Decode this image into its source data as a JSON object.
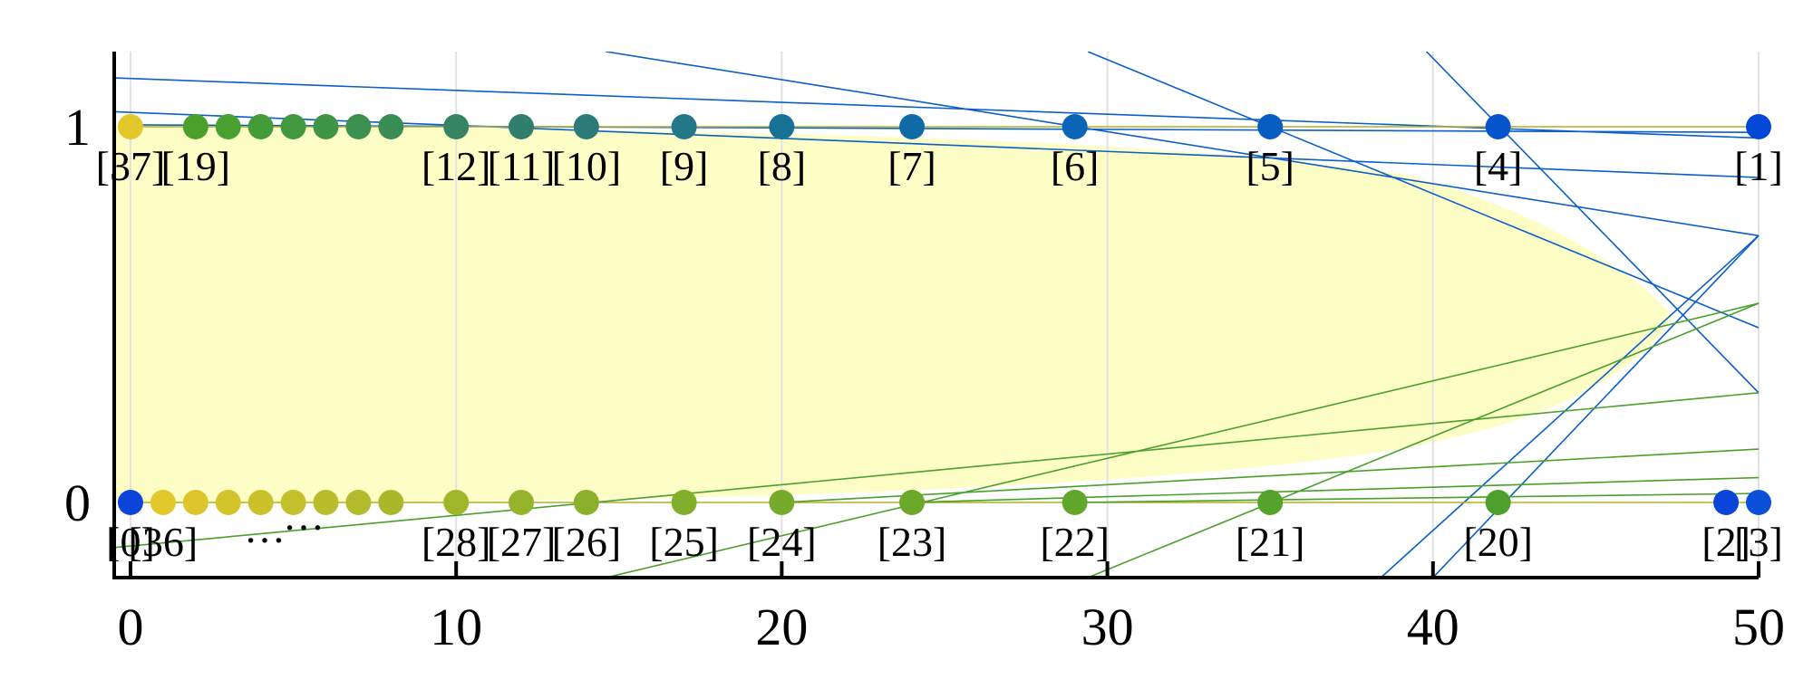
{
  "chart_data": {
    "type": "scatter",
    "xlim": [
      -0.5,
      50
    ],
    "ylim": [
      -0.2,
      1.2
    ],
    "xticks": [
      0,
      10,
      20,
      30,
      40,
      50
    ],
    "yticks": [
      0,
      1
    ],
    "grid": true,
    "series": [
      {
        "x": [
          0,
          2,
          3,
          4,
          5,
          6,
          7,
          8,
          10,
          12,
          14,
          17,
          20,
          24,
          29,
          35,
          42,
          50
        ],
        "values": [
          1,
          1,
          1,
          1,
          1,
          1,
          1,
          1,
          1,
          1,
          1,
          1,
          1,
          1,
          1,
          1,
          1,
          1
        ],
        "labels": [
          "[37]",
          "[19]",
          null,
          null,
          null,
          null,
          null,
          null,
          "[12]",
          "[11]",
          "[10]",
          "[9]",
          "[8]",
          "[7]",
          "[6]",
          "[5]",
          "[4]",
          "[1]"
        ],
        "colors": [
          "#e3c82c",
          "#4ba02c",
          "#47a030",
          "#449c38",
          "#41983f",
          "#3f9446",
          "#3c904d",
          "#3a8c55",
          "#378462",
          "#327e6c",
          "#2b7a78",
          "#227788",
          "#187296",
          "#0f6aa6",
          "#0b64b6",
          "#085dc2",
          "#0655cc",
          "#0448d6"
        ]
      },
      {
        "x": [
          0,
          1,
          2,
          3,
          4,
          5,
          6,
          7,
          8,
          10,
          12,
          14,
          17,
          20,
          24,
          29,
          35,
          42,
          49,
          50
        ],
        "values": [
          0,
          0,
          0,
          0,
          0,
          0,
          0,
          0,
          0,
          0,
          0,
          0,
          0,
          0,
          0,
          0,
          0,
          0,
          0,
          0
        ],
        "labels": [
          "[0]",
          "[36]",
          null,
          null,
          null,
          null,
          null,
          null,
          null,
          "[28]",
          "[27]",
          "[26]",
          "[25]",
          "[24]",
          "[23]",
          "[22]",
          "[21]",
          "[20]",
          "[2]",
          "[3]"
        ],
        "colors": [
          "#0a44d8",
          "#e3c82c",
          "#dcc62b",
          "#d4c42b",
          "#cbc22b",
          "#c2c02b",
          "#b9bd2b",
          "#b1bb2b",
          "#a9b82b",
          "#9fb62b",
          "#95b32b",
          "#8bb02b",
          "#81ae2b",
          "#77ab2b",
          "#6ca92b",
          "#62a62b",
          "#56a32b",
          "#4ca02b",
          "#0a44d8",
          "#0a50d8"
        ]
      }
    ],
    "annotations": [
      "…",
      "…"
    ],
    "lines": [
      {
        "color": "#0a5fc8",
        "x": [
          -0.5,
          50
        ],
        "values": [
          1.13,
          0.97
        ]
      },
      {
        "color": "#0a5fc8",
        "x": [
          -0.5,
          50
        ],
        "values": [
          1.04,
          0.865
        ]
      },
      {
        "color": "#0a5fc8",
        "x": [
          14.6,
          50
        ],
        "values": [
          1.2,
          0.71
        ]
      },
      {
        "color": "#0a5fc8",
        "x": [
          29.4,
          50
        ],
        "values": [
          1.2,
          0.465
        ]
      },
      {
        "color": "#0a5fc8",
        "x": [
          39.8,
          50
        ],
        "values": [
          1.2,
          0.292
        ]
      },
      {
        "color": "#0a5fc8",
        "x": [
          38.4,
          50
        ],
        "values": [
          -0.2,
          0.71
        ]
      },
      {
        "color": "#0a5fc8",
        "x": [
          40,
          50
        ],
        "values": [
          -0.2,
          0.71
        ]
      },
      {
        "color": "#0a5fc8",
        "x": [
          0,
          50
        ],
        "values": [
          1.005,
          0.985
        ]
      },
      {
        "color": "#b0b020",
        "x": [
          0,
          50
        ],
        "values": [
          1,
          1
        ]
      },
      {
        "color": "#b0b020",
        "x": [
          0,
          50
        ],
        "values": [
          0,
          0
        ]
      },
      {
        "color": "#4aa02a",
        "x": [
          14.6,
          50
        ],
        "values": [
          -0.2,
          0.53
        ]
      },
      {
        "color": "#4aa02a",
        "x": [
          29.4,
          50
        ],
        "values": [
          -0.2,
          0.53
        ]
      },
      {
        "color": "#4aa02a",
        "x": [
          -0.5,
          50
        ],
        "values": [
          -0.12,
          0.292
        ]
      },
      {
        "color": "#4aa02a",
        "x": [
          20,
          50
        ],
        "values": [
          0,
          0.142
        ]
      },
      {
        "color": "#4aa02a",
        "x": [
          24,
          50
        ],
        "values": [
          0,
          0.066
        ]
      },
      {
        "color": "#4aa02a",
        "x": [
          29,
          50
        ],
        "values": [
          0,
          0.024
        ]
      }
    ]
  }
}
